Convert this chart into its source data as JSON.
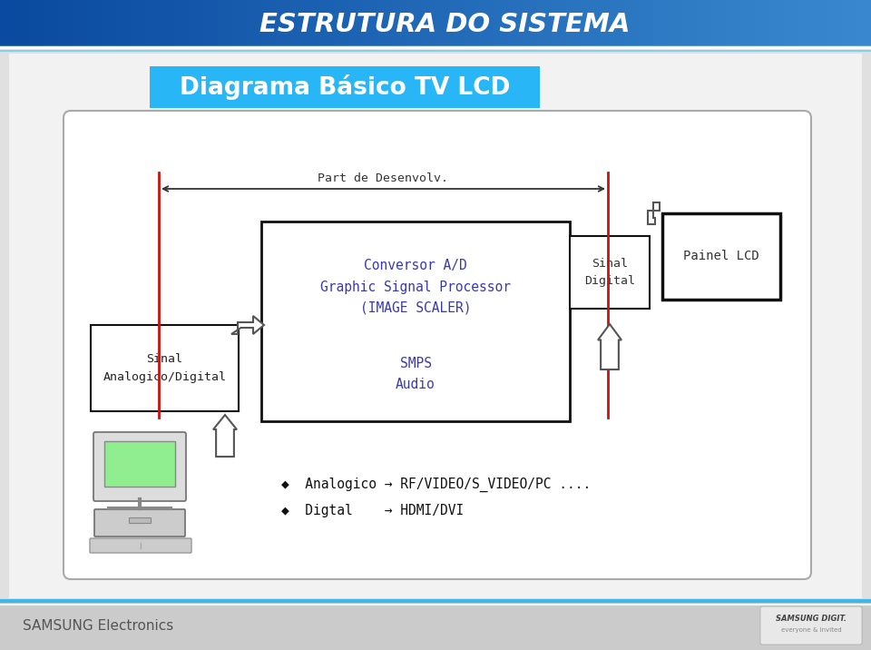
{
  "title_header": "ESTRUTURA DO SISTEMA",
  "subtitle": "Diagrama Básico TV LCD",
  "bg_color": "#E0E0E0",
  "content_bg": "#F2F2F2",
  "header_blue": "#1B6CC4",
  "subtitle_bg": "#29B6F6",
  "footer_bg": "#CBCBCB",
  "footer_blue_line": "#3BB8E8",
  "footer_text": "SAMSUNG Electronics",
  "processor_text": "Conversor A/D\nGraphic Signal Processor\n(IMAGE SCALER)",
  "processor_text_color": "#3A3AB0",
  "smps_text": "SMPS\nAudio",
  "smps_text_color": "#3A3AB0",
  "sinal_analog_text": "Sinal\nAnalogico/Digital",
  "sinal_digital_text": "Sinal\nDigital",
  "painel_text": "Painel LCD",
  "part_text": "Part de Desenvolv.",
  "bullet1": "◆  Analogico → RF/VIDEO/S_VIDEO/PC ....",
  "bullet2": "◆  Digtal    → HDMI/DVI",
  "red_color": "#CC1111",
  "box_edge": "#111111",
  "arrow_color": "#555555"
}
